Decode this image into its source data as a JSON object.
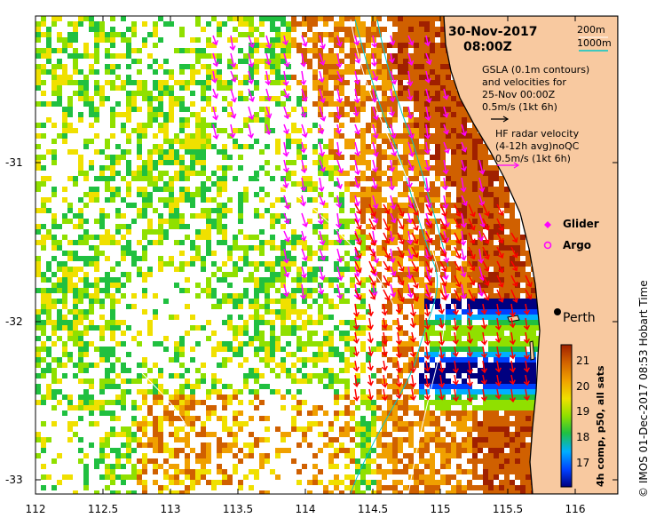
{
  "header": {
    "date": "30-Nov-2017",
    "time": "08:00Z"
  },
  "legend": {
    "contour_200": "200m",
    "contour_1000": "1000m",
    "gsla_line1": "GSLA (0.1m contours)",
    "gsla_line2": "and velocities for",
    "gsla_line3": "25-Nov 00:00Z",
    "gsla_scale": "0.5m/s (1kt 6h)",
    "hf_line1": "HF radar velocity",
    "hf_line2": "(4-12h avg)noQC",
    "hf_scale": "0.5m/s (1kt 6h)",
    "glider": "Glider",
    "argo": "Argo"
  },
  "place": {
    "city": "Perth"
  },
  "axes": {
    "x_ticks": [
      "112",
      "112.5",
      "113",
      "113.5",
      "114",
      "114.5",
      "115",
      "115.5",
      "116"
    ],
    "y_ticks": [
      "-31",
      "-32",
      "-33"
    ]
  },
  "colorbar": {
    "ticks": [
      "21",
      "20",
      "19",
      "18",
      "17"
    ],
    "label": "4h comp, p50, all sats"
  },
  "credit": "© IMOS 01-Dec-2017 08:53 Hobart Time",
  "colors": {
    "land": "#f8c9a0",
    "coast": "#000000",
    "contour_1000": "#00c8c8",
    "contour_200": "#ffffff",
    "gsla_arrow": "#ff00ff",
    "hf_arrow": "#ff0000"
  }
}
